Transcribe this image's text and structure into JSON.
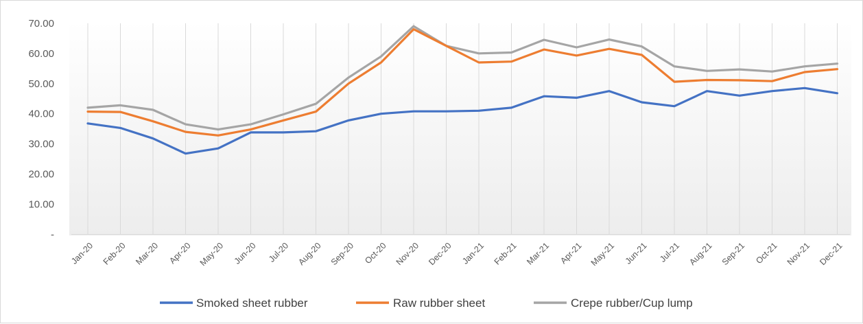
{
  "chart_data": {
    "type": "line",
    "title": "",
    "xlabel": "",
    "ylabel": "",
    "ylim": [
      0,
      70
    ],
    "y_ticks": [
      {
        "value": 0,
        "label": "-"
      },
      {
        "value": 10,
        "label": "10.00"
      },
      {
        "value": 20,
        "label": "20.00"
      },
      {
        "value": 30,
        "label": "30.00"
      },
      {
        "value": 40,
        "label": "40.00"
      },
      {
        "value": 50,
        "label": "50.00"
      },
      {
        "value": 60,
        "label": "60.00"
      },
      {
        "value": 70,
        "label": "70.00"
      }
    ],
    "grid": "vertical",
    "legend_position": "bottom",
    "x": [
      "Jan-20",
      "Feb-20",
      "Mar-20",
      "Apr-20",
      "May-20",
      "Jun-20",
      "Jul-20",
      "Aug-20",
      "Sep-20",
      "Oct-20",
      "Nov-20",
      "Dec-20",
      "Jan-21",
      "Feb-21",
      "Mar-21",
      "Apr-21",
      "May-21",
      "Jun-21",
      "Jul-21",
      "Aug-21",
      "Sep-21",
      "Oct-21",
      "Nov-21",
      "Dec-21"
    ],
    "series": [
      {
        "name": "Smoked sheet rubber",
        "color": "#4472c4",
        "values": [
          36.8,
          35.3,
          31.8,
          26.8,
          28.5,
          33.8,
          33.8,
          34.2,
          37.8,
          40.0,
          40.8,
          40.8,
          41.0,
          42.0,
          45.8,
          45.3,
          47.5,
          43.8,
          42.5,
          47.5,
          46.0,
          47.5,
          48.5,
          46.8
        ]
      },
      {
        "name": "Raw rubber sheet",
        "color": "#ed7d31",
        "values": [
          40.7,
          40.6,
          37.5,
          34.0,
          32.8,
          34.8,
          37.8,
          40.7,
          50.0,
          57.0,
          68.0,
          62.5,
          57.0,
          57.3,
          61.3,
          59.3,
          61.5,
          59.5,
          50.6,
          51.2,
          51.1,
          50.8,
          53.8,
          54.8
        ]
      },
      {
        "name": "Crepe rubber/Cup lump",
        "color": "#a5a5a5",
        "values": [
          42.0,
          42.8,
          41.3,
          36.5,
          34.8,
          36.5,
          39.8,
          43.3,
          52.0,
          59.0,
          69.0,
          62.5,
          60.0,
          60.3,
          64.5,
          62.0,
          64.6,
          62.3,
          55.7,
          54.2,
          54.7,
          54.0,
          55.7,
          56.6
        ]
      }
    ]
  }
}
